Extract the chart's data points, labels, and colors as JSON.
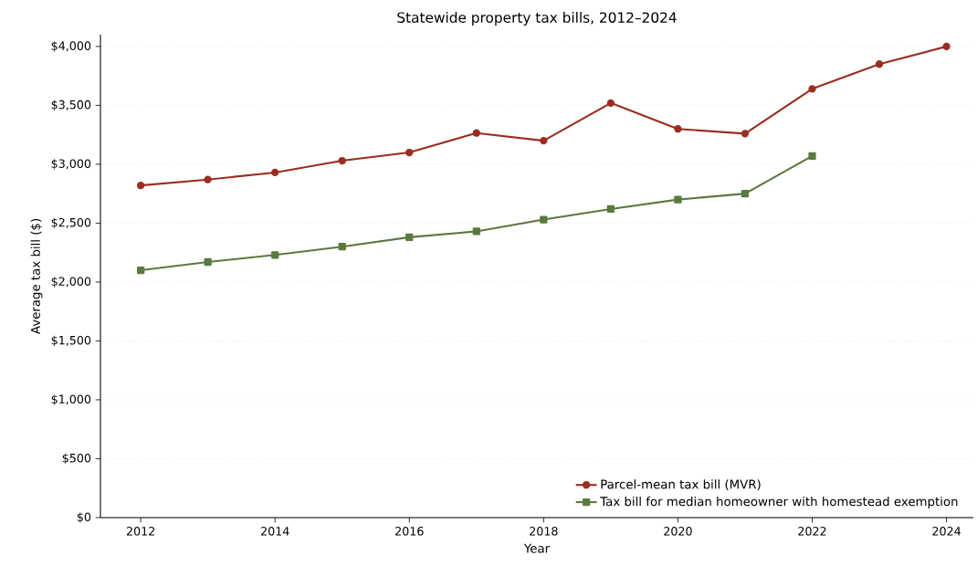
{
  "chart_data": {
    "type": "line",
    "title": "Statewide property tax bills, 2012–2024",
    "xlabel": "Year",
    "ylabel": "Average tax bill ($)",
    "x": [
      2012,
      2013,
      2014,
      2015,
      2016,
      2017,
      2018,
      2019,
      2020,
      2021,
      2022,
      2023,
      2024
    ],
    "series": [
      {
        "name": "Parcel-mean tax bill (MVR)",
        "color": "#9b2d20",
        "marker": "circle",
        "values": [
          2820,
          2870,
          2930,
          3030,
          3100,
          3265,
          3200,
          3520,
          3300,
          3260,
          3640,
          3850,
          4000
        ]
      },
      {
        "name": "Tax bill for median homeowner with homestead exemption",
        "color": "#5a7a40",
        "marker": "square",
        "values": [
          2100,
          2170,
          2230,
          2300,
          2380,
          2430,
          2530,
          2620,
          2700,
          2750,
          3070,
          null,
          null
        ]
      }
    ],
    "xlim": [
      2011.4,
      2024.4
    ],
    "ylim": [
      0,
      4100
    ],
    "xticks": [
      2012,
      2014,
      2016,
      2018,
      2020,
      2022,
      2024
    ],
    "yticks": [
      {
        "value": 0,
        "label": "$0"
      },
      {
        "value": 500,
        "label": "$500"
      },
      {
        "value": 1000,
        "label": "$1,000"
      },
      {
        "value": 1500,
        "label": "$1,500"
      },
      {
        "value": 2000,
        "label": "$2,000"
      },
      {
        "value": 2500,
        "label": "$2,500"
      },
      {
        "value": 3000,
        "label": "$3,000"
      },
      {
        "value": 3500,
        "label": "$3,500"
      },
      {
        "value": 4000,
        "label": "$4,000"
      }
    ],
    "grid": "y",
    "legend": "bottom right",
    "line_style": "solid"
  }
}
